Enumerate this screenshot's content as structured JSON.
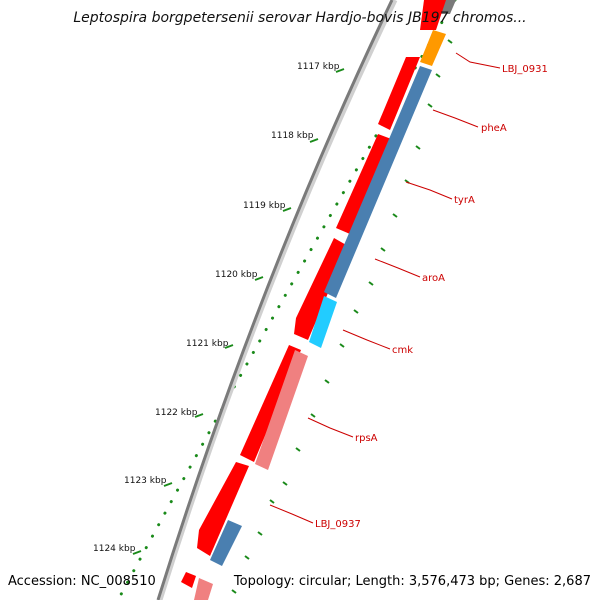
{
  "title": "Leptospira borgpetersenii serovar Hardjo-bovis JB197 chromos...",
  "footer": {
    "accession": "Accession: NC_008510",
    "summary": "Topology: circular; Length: 3,576,473 bp; Genes: 2,687"
  },
  "colors": {
    "backbone": "#8a8a8a",
    "forward_gene": "#ff0000",
    "reverse_gene": "#4a7fb0",
    "orange_gene": "#ff9900",
    "cyan_gene": "#22ccff",
    "pink_gene": "#f08080",
    "label": "#cc0000",
    "ticks": "#1a8a1a"
  },
  "kbp_labels": [
    "1117 kbp",
    "1118 kbp",
    "1119 kbp",
    "1120 kbp",
    "1121 kbp",
    "1122 kbp",
    "1123 kbp",
    "1124 kbp"
  ],
  "gene_labels": [
    "LBJ_0931",
    "pheA",
    "tyrA",
    "aroA",
    "cmk",
    "rpsA",
    "LBJ_0937"
  ]
}
